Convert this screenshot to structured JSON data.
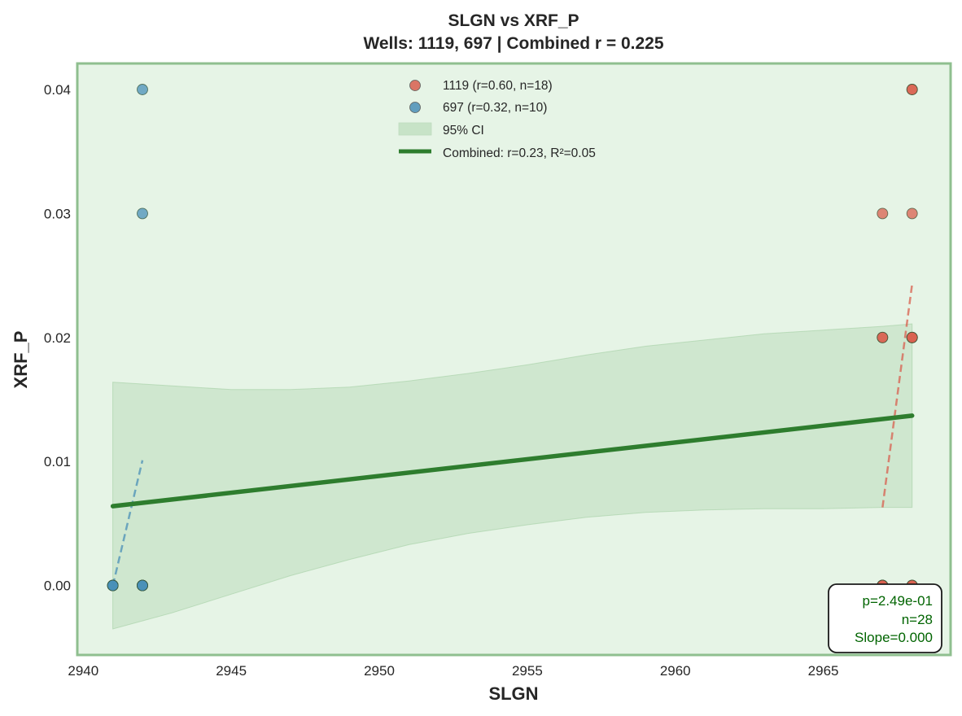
{
  "chart_data": {
    "type": "scatter",
    "title": "SLGN vs XRF_P",
    "subtitle": "Wells: 1119, 697 | Combined r = 0.225",
    "xlabel": "SLGN",
    "ylabel": "XRF_P",
    "xlim": [
      2939.8,
      2969.3
    ],
    "ylim": [
      -0.0056,
      0.0421
    ],
    "xticks": [
      2940,
      2945,
      2950,
      2955,
      2960,
      2965
    ],
    "xtick_labels": [
      "2940",
      "2945",
      "2950",
      "2955",
      "2960",
      "2965"
    ],
    "yticks": [
      0.0,
      0.01,
      0.02,
      0.03,
      0.04
    ],
    "ytick_labels": [
      "0.00",
      "0.01",
      "0.02",
      "0.03",
      "0.04"
    ],
    "grid": false,
    "legend_position": "top-center",
    "background_color": "#e6f4e6",
    "border_color": "#8fbf8f",
    "series": [
      {
        "name": "1119 (r=0.60, n=18)",
        "color": "#d9604f",
        "points": [
          [
            2967,
            0.03
          ],
          [
            2968,
            0.03
          ],
          [
            2968,
            0.04
          ],
          [
            2968,
            0.04
          ],
          [
            2967,
            0.02
          ],
          [
            2967,
            0.02
          ],
          [
            2968,
            0.02
          ],
          [
            2968,
            0.02
          ],
          [
            2968,
            0.02
          ],
          [
            2967,
            0.0
          ],
          [
            2967,
            0.0
          ],
          [
            2967,
            0.0
          ],
          [
            2967,
            0.0
          ],
          [
            2968,
            0.0
          ],
          [
            2968,
            0.0
          ],
          [
            2967,
            0.0
          ],
          [
            2968,
            0.0
          ],
          [
            2967,
            0.0
          ]
        ],
        "trend": [
          [
            2967,
            0.0063
          ],
          [
            2968,
            0.0243
          ]
        ]
      },
      {
        "name": "697 (r=0.32, n=10)",
        "color": "#4a90b8",
        "points": [
          [
            2942,
            0.04
          ],
          [
            2942,
            0.03
          ],
          [
            2941,
            0.0
          ],
          [
            2941,
            0.0
          ],
          [
            2941,
            0.0
          ],
          [
            2942,
            0.0
          ],
          [
            2942,
            0.0
          ],
          [
            2942,
            0.0
          ],
          [
            2942,
            0.0
          ],
          [
            2941,
            0.0
          ]
        ],
        "trend": [
          [
            2941,
            0.0
          ],
          [
            2942,
            0.0101
          ]
        ]
      }
    ],
    "ci_band": {
      "name": "95% CI",
      "color": "#a3cfa3",
      "x": [
        2941,
        2943,
        2945,
        2947,
        2949,
        2951,
        2953,
        2955,
        2957,
        2959,
        2961,
        2963,
        2965,
        2967,
        2968
      ],
      "upper": [
        0.0164,
        0.0161,
        0.0158,
        0.0158,
        0.016,
        0.0165,
        0.0171,
        0.0178,
        0.0186,
        0.0193,
        0.0198,
        0.0203,
        0.0206,
        0.0209,
        0.0211
      ],
      "lower": [
        -0.0035,
        -0.0022,
        -0.0007,
        0.0008,
        0.0021,
        0.0033,
        0.0042,
        0.0049,
        0.0055,
        0.0059,
        0.0061,
        0.0062,
        0.0062,
        0.0063,
        0.0063
      ]
    },
    "combined_fit": {
      "name": "Combined: r=0.23, R²=0.05",
      "color": "#2e7d2e",
      "x": [
        2941,
        2968
      ],
      "y": [
        0.0064,
        0.0137
      ]
    },
    "stats": {
      "lines": [
        "p=2.49e-01",
        "n=28",
        "Slope=0.000"
      ],
      "color": "#006400"
    }
  }
}
